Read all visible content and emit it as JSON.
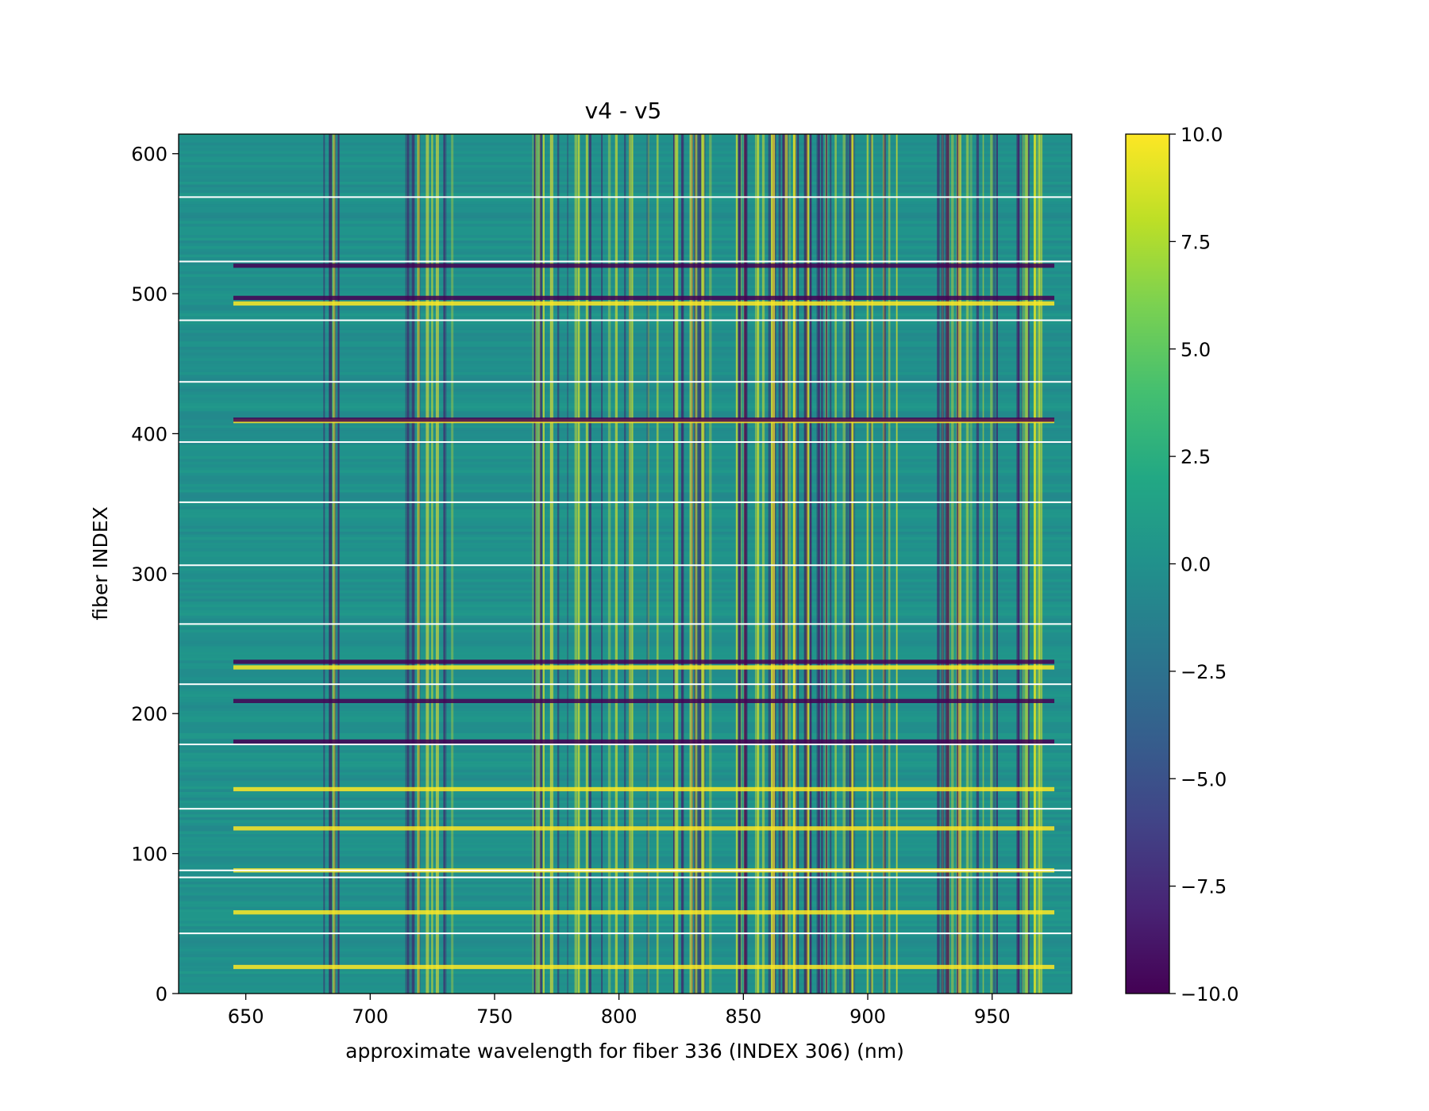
{
  "chart_data": {
    "type": "heatmap",
    "title": "v4 - v5",
    "xlabel": "approximate wavelength for fiber 336 (INDEX 306) (nm)",
    "ylabel": "fiber INDEX",
    "xlim": [
      623,
      982
    ],
    "ylim": [
      0,
      614
    ],
    "xticks": [
      650,
      700,
      750,
      800,
      850,
      900,
      950
    ],
    "yticks": [
      0,
      100,
      200,
      300,
      400,
      500,
      600
    ],
    "colorbar": {
      "colormap": "viridis",
      "range": [
        -10.0,
        10.0
      ],
      "ticks": [
        10.0,
        7.5,
        5.0,
        2.5,
        0.0,
        -2.5,
        -5.0,
        -7.5,
        -10.0
      ],
      "tick_labels": [
        "10.0",
        "7.5",
        "5.0",
        "2.5",
        "0.0",
        "−2.5",
        "−5.0",
        "−7.5",
        "−10.0"
      ]
    },
    "gap_rows": [
      43,
      83,
      88,
      132,
      178,
      221,
      264,
      306,
      351,
      394,
      437,
      481,
      523,
      569
    ],
    "bright_rows": [
      19,
      58,
      88,
      118,
      146,
      233,
      409,
      493
    ],
    "dark_rows": [
      180,
      209,
      237,
      410,
      497,
      520
    ],
    "strong_columns": [
      684,
      723,
      727,
      773,
      829,
      851,
      862,
      875,
      932,
      937
    ],
    "background_value": 0.0
  }
}
